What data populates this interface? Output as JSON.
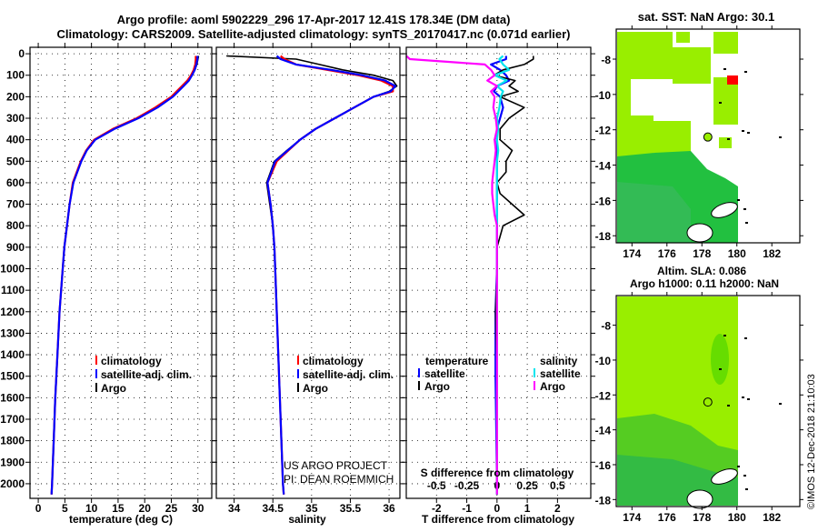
{
  "title": {
    "line1": "Argo profile: aoml 5902229_296 17-Apr-2017 12.41S 178.34E (DM data)",
    "line2": "Climatology: CARS2009. Satellite-adjusted climatology: synTS_20170417.nc (0.071d earlier)"
  },
  "credit": {
    "line1": "US ARGO PROJECT",
    "line2": "PI: DEAN ROEMMICH"
  },
  "footer": "©IMOS 12-Dec-2018 21:10:03",
  "colors": {
    "climatology": "#ff0000",
    "satellite": "#0000ff",
    "argo": "#000000",
    "sat_salinity": "#00e5ee",
    "argo_salinity": "#ff00ff"
  },
  "chart_data": [
    {
      "type": "line",
      "xlabel": "temperature (deg C)",
      "xlim": [
        -1.55,
        32.6
      ],
      "ylim": [
        2068,
        -30
      ],
      "xticks": [
        0,
        5,
        10,
        15,
        20,
        25,
        30
      ],
      "yticks": [
        0,
        100,
        200,
        300,
        400,
        500,
        600,
        700,
        800,
        900,
        1000,
        1100,
        1200,
        1300,
        1400,
        1500,
        1600,
        1700,
        1800,
        1900,
        2000
      ],
      "legend": [
        "climatology",
        "satellite-adj. clim.",
        "Argo"
      ],
      "depth": [
        10,
        25,
        50,
        75,
        100,
        125,
        150,
        175,
        200,
        250,
        300,
        350,
        400,
        450,
        500,
        600,
        700,
        800,
        900,
        1000,
        1200,
        1400,
        1600,
        1800,
        2000,
        2050
      ],
      "series": [
        {
          "name": "Argo",
          "color": "#000000",
          "values": [
            30.1,
            30.0,
            29.8,
            29.4,
            28.9,
            28.3,
            27.3,
            26.3,
            25.3,
            22.4,
            18.8,
            14.3,
            10.7,
            9.1,
            8.1,
            6.6,
            5.9,
            5.4,
            4.9,
            4.6,
            4.0,
            3.6,
            3.2,
            2.9,
            2.6,
            2.5
          ]
        },
        {
          "name": "climatology",
          "color": "#ff0000",
          "values": [
            29.6,
            29.6,
            29.5,
            29.2,
            28.7,
            28.0,
            27.0,
            26.0,
            25.0,
            22.0,
            18.5,
            14.0,
            10.5,
            9.0,
            8.0,
            6.5,
            5.9,
            5.4,
            4.9,
            4.6,
            4.0,
            3.6,
            3.2,
            2.9,
            2.6,
            2.5
          ]
        },
        {
          "name": "satellite-adj. clim.",
          "color": "#0000ff",
          "values": [
            29.9,
            29.9,
            29.7,
            29.4,
            28.9,
            28.3,
            27.3,
            26.3,
            25.3,
            22.4,
            18.8,
            14.3,
            10.7,
            9.1,
            8.1,
            6.6,
            5.9,
            5.4,
            4.9,
            4.6,
            4.0,
            3.6,
            3.2,
            2.9,
            2.6,
            2.5
          ]
        }
      ]
    },
    {
      "type": "line",
      "xlabel": "salinity",
      "xlim": [
        33.77,
        36.14
      ],
      "ylim": [
        2068,
        -30
      ],
      "xticks": [
        34,
        34.5,
        35,
        35.5,
        36
      ],
      "legend": [
        "climatology",
        "satellite-adj. clim.",
        "Argo"
      ],
      "depth": [
        10,
        25,
        50,
        75,
        100,
        125,
        150,
        175,
        200,
        250,
        300,
        350,
        400,
        450,
        500,
        600,
        700,
        800,
        900,
        1000,
        1200,
        1400,
        1600,
        1800,
        2000,
        2050
      ],
      "series": [
        {
          "name": "Argo",
          "color": "#000000",
          "values": [
            33.9,
            34.8,
            35.1,
            35.4,
            35.8,
            36.05,
            36.1,
            36.0,
            35.8,
            35.55,
            35.3,
            35.05,
            34.85,
            34.68,
            34.52,
            34.42,
            34.46,
            34.5,
            34.52,
            34.53,
            34.55,
            34.57,
            34.59,
            34.61,
            34.63,
            34.64
          ]
        },
        {
          "name": "climatology",
          "color": "#ff0000",
          "values": [
            34.6,
            34.65,
            34.8,
            35.2,
            35.6,
            35.9,
            36.05,
            36.05,
            35.8,
            35.55,
            35.3,
            35.05,
            34.85,
            34.7,
            34.55,
            34.43,
            34.47,
            34.5,
            34.52,
            34.53,
            34.55,
            34.57,
            34.59,
            34.61,
            34.63,
            34.64
          ]
        },
        {
          "name": "satellite-adj. clim.",
          "color": "#0000ff",
          "values": [
            34.55,
            34.6,
            34.8,
            35.25,
            35.65,
            35.95,
            36.08,
            36.02,
            35.8,
            35.55,
            35.3,
            35.05,
            34.85,
            34.69,
            34.53,
            34.43,
            34.47,
            34.5,
            34.52,
            34.53,
            34.55,
            34.57,
            34.59,
            34.61,
            34.63,
            34.64
          ]
        }
      ]
    },
    {
      "type": "line",
      "xlabel": "T difference from climatology",
      "xlabel2": "S difference from climatology",
      "xlim": [
        -3.0,
        3.1
      ],
      "ylim": [
        2068,
        -30
      ],
      "xticks": [
        -2,
        -1,
        0,
        1,
        2
      ],
      "xticks2": [
        "-0.5",
        "-0.25",
        "0",
        "0.25",
        "0.5"
      ],
      "xticks2_values": [
        -0.5,
        -0.25,
        0,
        0.25,
        0.5
      ],
      "legend_temperature": {
        "title": "temperature",
        "items": [
          "satellite",
          "Argo"
        ]
      },
      "legend_salinity": {
        "title": "salinity",
        "items": [
          "satellite",
          "Argo"
        ]
      },
      "depth": [
        10,
        25,
        50,
        75,
        100,
        125,
        150,
        175,
        200,
        250,
        300,
        350,
        400,
        450,
        500,
        550,
        600,
        650,
        700,
        750,
        800,
        850,
        900,
        950,
        1000,
        1200,
        1500,
        2000,
        2050
      ],
      "series": [
        {
          "name": "temperature satellite",
          "axis": "T",
          "color": "#0000ff",
          "values": [
            0.3,
            0.3,
            -0.2,
            0.1,
            0.3,
            0.4,
            0.0,
            -0.1,
            0.1,
            0.2,
            0.1,
            0,
            0,
            0,
            0,
            0,
            0,
            0,
            0,
            0,
            0,
            0,
            0,
            0,
            0,
            -0.05,
            -0.05,
            0,
            0
          ]
        },
        {
          "name": "temperature Argo",
          "axis": "T",
          "color": "#000000",
          "values": [
            1.2,
            1.2,
            0.9,
            0.2,
            -0.1,
            0.6,
            0.4,
            0.7,
            0.1,
            0.9,
            0.4,
            0.1,
            0.1,
            0.5,
            0.3,
            0.3,
            0.0,
            0.1,
            0.5,
            0.9,
            0.2,
            0.1,
            0.0,
            0,
            0,
            -0.05,
            0,
            0,
            0
          ]
        },
        {
          "name": "salinity satellite",
          "axis": "S",
          "color": "#00e5ee",
          "values": [
            0.05,
            0.02,
            0.05,
            0.1,
            -0.02,
            0.08,
            0.0,
            0.05,
            0.03,
            0.02,
            0.0,
            0.01,
            0.0,
            0.01,
            0,
            0,
            0,
            0,
            0,
            0,
            0,
            0,
            0,
            0,
            0,
            0,
            0,
            0,
            0
          ]
        },
        {
          "name": "salinity Argo",
          "axis": "S",
          "color": "#ff00ff",
          "values": [
            -0.75,
            -0.72,
            -0.1,
            -0.05,
            -0.02,
            -0.08,
            0.0,
            -0.05,
            -0.02,
            -0.03,
            -0.01,
            0.0,
            -0.02,
            -0.01,
            -0.02,
            -0.03,
            -0.04,
            -0.04,
            -0.03,
            -0.02,
            0,
            0,
            0,
            0,
            0,
            0,
            0,
            0,
            0
          ]
        }
      ]
    }
  ],
  "maps": [
    {
      "title": "sat. SST: NaN Argo: 30.1",
      "xticks": [
        174,
        176,
        178,
        180,
        182
      ],
      "yticks": [
        -8,
        -10,
        -12,
        -14,
        -16,
        -18
      ]
    },
    {
      "title": "Altim. SLA: 0.086",
      "subtitle": "Argo h1000: 0.11 h2000: NaN",
      "xticks": [
        174,
        176,
        178,
        180,
        182
      ],
      "yticks": [
        -8,
        -10,
        -12,
        -14,
        -16,
        -18
      ]
    }
  ]
}
